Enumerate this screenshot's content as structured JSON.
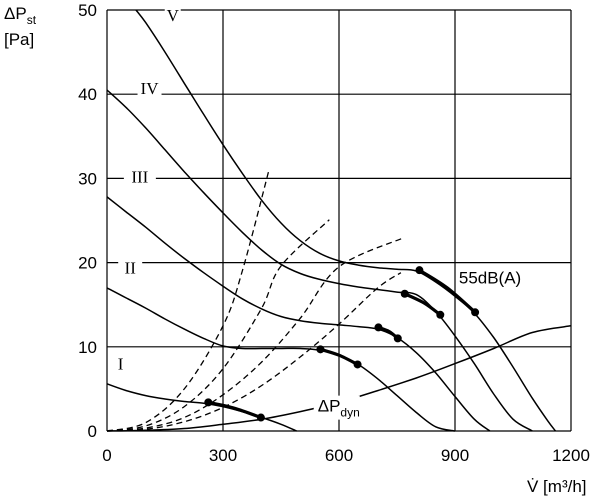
{
  "chart_data": {
    "type": "line",
    "ylabel": "ΔPst",
    "ylabel_sub": "st",
    "ylabel_main": "ΔP",
    "yunit": "[Pa]",
    "xlabel": "V̇ [m³/h]",
    "xlim": [
      0,
      1200
    ],
    "ylim": [
      0,
      50
    ],
    "x_ticks": [
      0,
      300,
      600,
      900,
      1200
    ],
    "y_ticks": [
      0,
      10,
      20,
      30,
      40,
      50
    ],
    "x_tick_labels": [
      "0",
      "300",
      "600",
      "900",
      "1200"
    ],
    "y_tick_labels": [
      "0",
      "10",
      "20",
      "30",
      "40",
      "50"
    ],
    "grid": true,
    "fan_curves": [
      {
        "name": "I",
        "points": [
          [
            0,
            5.6
          ],
          [
            50,
            4.8
          ],
          [
            100,
            4.2
          ],
          [
            150,
            3.8
          ],
          [
            200,
            3.5
          ],
          [
            250,
            3.3
          ],
          [
            300,
            2.9
          ],
          [
            350,
            2.3
          ],
          [
            400,
            1.6
          ],
          [
            450,
            0.8
          ],
          [
            490,
            0
          ]
        ]
      },
      {
        "name": "II",
        "points": [
          [
            0,
            17
          ],
          [
            50,
            15.8
          ],
          [
            100,
            14.6
          ],
          [
            150,
            13.3
          ],
          [
            200,
            12.1
          ],
          [
            250,
            11.0
          ],
          [
            300,
            10.1
          ],
          [
            350,
            9.8
          ],
          [
            400,
            9.8
          ],
          [
            450,
            9.8
          ],
          [
            500,
            9.8
          ],
          [
            550,
            9.6
          ],
          [
            600,
            9.0
          ],
          [
            650,
            7.9
          ],
          [
            700,
            6.2
          ],
          [
            750,
            4.2
          ],
          [
            800,
            2.2
          ],
          [
            850,
            0.5
          ],
          [
            900,
            0
          ]
        ]
      },
      {
        "name": "III",
        "points": [
          [
            0,
            27.8
          ],
          [
            50,
            26.0
          ],
          [
            100,
            24.2
          ],
          [
            150,
            22.3
          ],
          [
            200,
            20.5
          ],
          [
            250,
            18.8
          ],
          [
            300,
            17.2
          ],
          [
            350,
            15.7
          ],
          [
            400,
            14.5
          ],
          [
            450,
            13.6
          ],
          [
            500,
            13.1
          ],
          [
            550,
            12.8
          ],
          [
            600,
            12.6
          ],
          [
            650,
            12.4
          ],
          [
            700,
            12.1
          ],
          [
            750,
            11.1
          ],
          [
            800,
            9.3
          ],
          [
            850,
            6.9
          ],
          [
            900,
            4.1
          ],
          [
            950,
            1.4
          ],
          [
            990,
            0
          ]
        ]
      },
      {
        "name": "IV",
        "points": [
          [
            0,
            40.5
          ],
          [
            50,
            38.4
          ],
          [
            100,
            36.0
          ],
          [
            150,
            33.4
          ],
          [
            200,
            30.8
          ],
          [
            250,
            28.3
          ],
          [
            300,
            25.9
          ],
          [
            350,
            23.6
          ],
          [
            400,
            21.5
          ],
          [
            450,
            19.8
          ],
          [
            500,
            18.7
          ],
          [
            550,
            18.0
          ],
          [
            600,
            17.5
          ],
          [
            650,
            17.1
          ],
          [
            700,
            16.8
          ],
          [
            750,
            16.5
          ],
          [
            800,
            16.2
          ],
          [
            850,
            14.2
          ],
          [
            900,
            11.3
          ],
          [
            950,
            8.0
          ],
          [
            1000,
            4.4
          ],
          [
            1050,
            1.4
          ],
          [
            1100,
            0
          ]
        ]
      },
      {
        "name": "V",
        "points": [
          [
            75,
            50
          ],
          [
            100,
            48.5
          ],
          [
            150,
            45.0
          ],
          [
            200,
            41.3
          ],
          [
            250,
            37.6
          ],
          [
            300,
            34.0
          ],
          [
            350,
            30.6
          ],
          [
            400,
            27.4
          ],
          [
            450,
            24.7
          ],
          [
            500,
            22.6
          ],
          [
            550,
            21.1
          ],
          [
            600,
            20.2
          ],
          [
            650,
            19.7
          ],
          [
            700,
            19.4
          ],
          [
            750,
            19.2
          ],
          [
            800,
            19.0
          ],
          [
            850,
            17.7
          ],
          [
            900,
            16.0
          ],
          [
            950,
            14.0
          ],
          [
            1000,
            11.1
          ],
          [
            1050,
            7.6
          ],
          [
            1100,
            3.9
          ],
          [
            1140,
            1.2
          ],
          [
            1160,
            0
          ]
        ]
      }
    ],
    "fan_curve_labels": [
      {
        "name": "I",
        "x": 35,
        "y": 7.3
      },
      {
        "name": "II",
        "x": 60,
        "y": 18.7
      },
      {
        "name": "III",
        "x": 85,
        "y": 29.5
      },
      {
        "name": "IV",
        "x": 110,
        "y": 40.0
      },
      {
        "name": "V",
        "x": 170,
        "y": 48.7
      }
    ],
    "system_curves": [
      {
        "points": [
          [
            0,
            0
          ],
          [
            100,
            1.0
          ],
          [
            200,
            5.0
          ],
          [
            300,
            12.5
          ],
          [
            350,
            19
          ],
          [
            420,
            31.2
          ]
        ]
      },
      {
        "points": [
          [
            0,
            0
          ],
          [
            100,
            0.6
          ],
          [
            200,
            2.9
          ],
          [
            300,
            7.4
          ],
          [
            400,
            14.6
          ],
          [
            450,
            19.6
          ],
          [
            575,
            25.1
          ]
        ]
      },
      {
        "points": [
          [
            0,
            0
          ],
          [
            100,
            0.35
          ],
          [
            200,
            1.6
          ],
          [
            300,
            4.3
          ],
          [
            400,
            8.2
          ],
          [
            500,
            13.4
          ],
          [
            600,
            19.5
          ],
          [
            770,
            23.0
          ]
        ]
      },
      {
        "points": [
          [
            0,
            0
          ],
          [
            100,
            0.2
          ],
          [
            200,
            1.1
          ],
          [
            300,
            2.8
          ],
          [
            400,
            5.4
          ],
          [
            500,
            8.8
          ],
          [
            600,
            12.7
          ],
          [
            700,
            17.0
          ],
          [
            760,
            18.8
          ]
        ]
      }
    ],
    "pdyn_curve": {
      "name": "ΔPdyn",
      "points": [
        [
          0,
          0
        ],
        [
          100,
          0.08
        ],
        [
          200,
          0.3
        ],
        [
          300,
          0.8
        ],
        [
          400,
          1.4
        ],
        [
          500,
          2.3
        ],
        [
          600,
          3.4
        ],
        [
          700,
          4.8
        ],
        [
          800,
          6.3
        ],
        [
          900,
          8.0
        ],
        [
          1000,
          9.8
        ],
        [
          1100,
          11.7
        ],
        [
          1200,
          12.5
        ]
      ]
    },
    "pdyn_label": {
      "main": "ΔP",
      "sub": "dyn",
      "x": 545,
      "y": 2.3
    },
    "noise_curve": {
      "name": "55dB(A)",
      "label_pos": {
        "x": 910,
        "y": 17.5
      },
      "segments": [
        {
          "points": [
            [
              262,
              3.4
            ],
            [
              330,
              2.7
            ],
            [
              398,
              1.6
            ]
          ]
        },
        {
          "points": [
            [
              552,
              9.7
            ],
            [
              600,
              9.0
            ],
            [
              648,
              7.9
            ]
          ]
        },
        {
          "points": [
            [
              702,
              12.3
            ],
            [
              730,
              11.8
            ],
            [
              752,
              11.0
            ]
          ]
        },
        {
          "points": [
            [
              770,
              16.3
            ],
            [
              820,
              15.2
            ],
            [
              862,
              13.8
            ]
          ]
        },
        {
          "points": [
            [
              808,
              19.1
            ],
            [
              880,
              17.0
            ],
            [
              952,
              14.1
            ]
          ]
        }
      ],
      "markers": [
        [
          262,
          3.4
        ],
        [
          398,
          1.6
        ],
        [
          552,
          9.7
        ],
        [
          648,
          7.9
        ],
        [
          702,
          12.3
        ],
        [
          752,
          11.0
        ],
        [
          770,
          16.3
        ],
        [
          862,
          13.8
        ],
        [
          808,
          19.1
        ],
        [
          952,
          14.1
        ]
      ]
    },
    "pdyn_label_text": "ΔPdyn",
    "noise_label_text": "55dB(A)"
  }
}
